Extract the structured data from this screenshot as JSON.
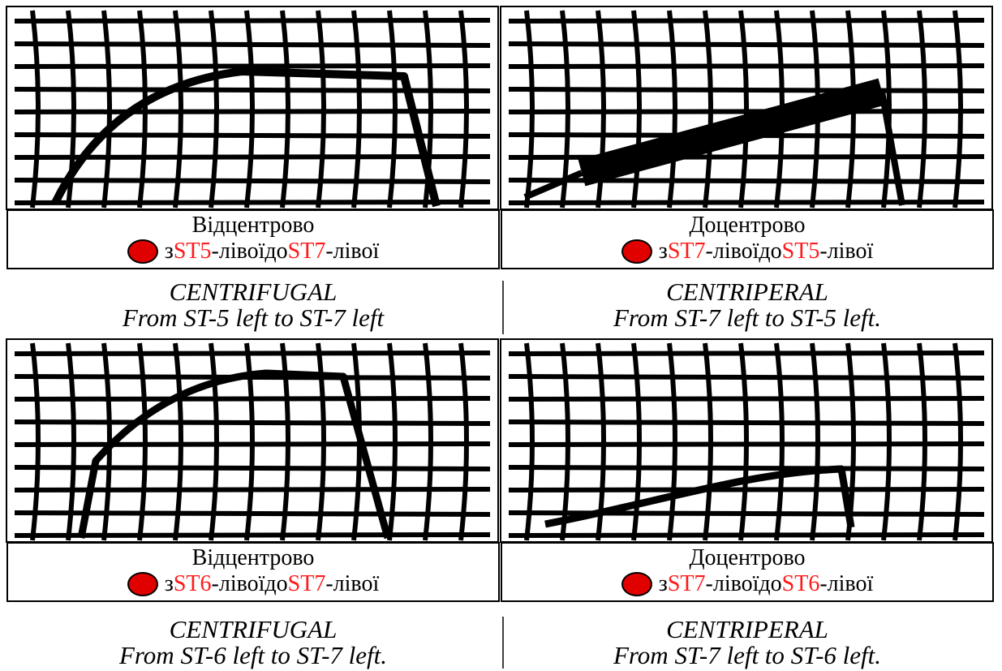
{
  "panels": [
    {
      "heading": "Відцентрово",
      "from_prefix": "з",
      "from_station": "ST5",
      "from_suffix": "-лівої",
      "to_prefix": "до",
      "to_station": "ST7",
      "to_suffix": "-лівої",
      "caption_title": "CENTRIFUGAL",
      "caption_text": "From ST-5 left to ST-7 left"
    },
    {
      "heading": "Доцентрово",
      "from_prefix": "з",
      "from_station": "ST7",
      "from_suffix": "-лівої",
      "to_prefix": "до",
      "to_station": "ST5",
      "to_suffix": "-лівої",
      "caption_title": "CENTRIPERAL",
      "caption_text": "From ST-7 left to ST-5 left."
    },
    {
      "heading": "Відцентрово",
      "from_prefix": "з",
      "from_station": "ST6",
      "from_suffix": "-лівої",
      "to_prefix": "до",
      "to_station": "ST7",
      "to_suffix": "-лівої",
      "caption_title": "CENTRIFUGAL",
      "caption_text": "From ST-6 left to ST-7 left."
    },
    {
      "heading": "Доцентрово",
      "from_prefix": "з",
      "from_station": "ST7",
      "from_suffix": "-лівої",
      "to_prefix": "до",
      "to_station": "ST6",
      "to_suffix": "-лівої",
      "caption_title": "CENTRIPERAL",
      "caption_text": "From ST-7 left to ST-6 left."
    }
  ]
}
